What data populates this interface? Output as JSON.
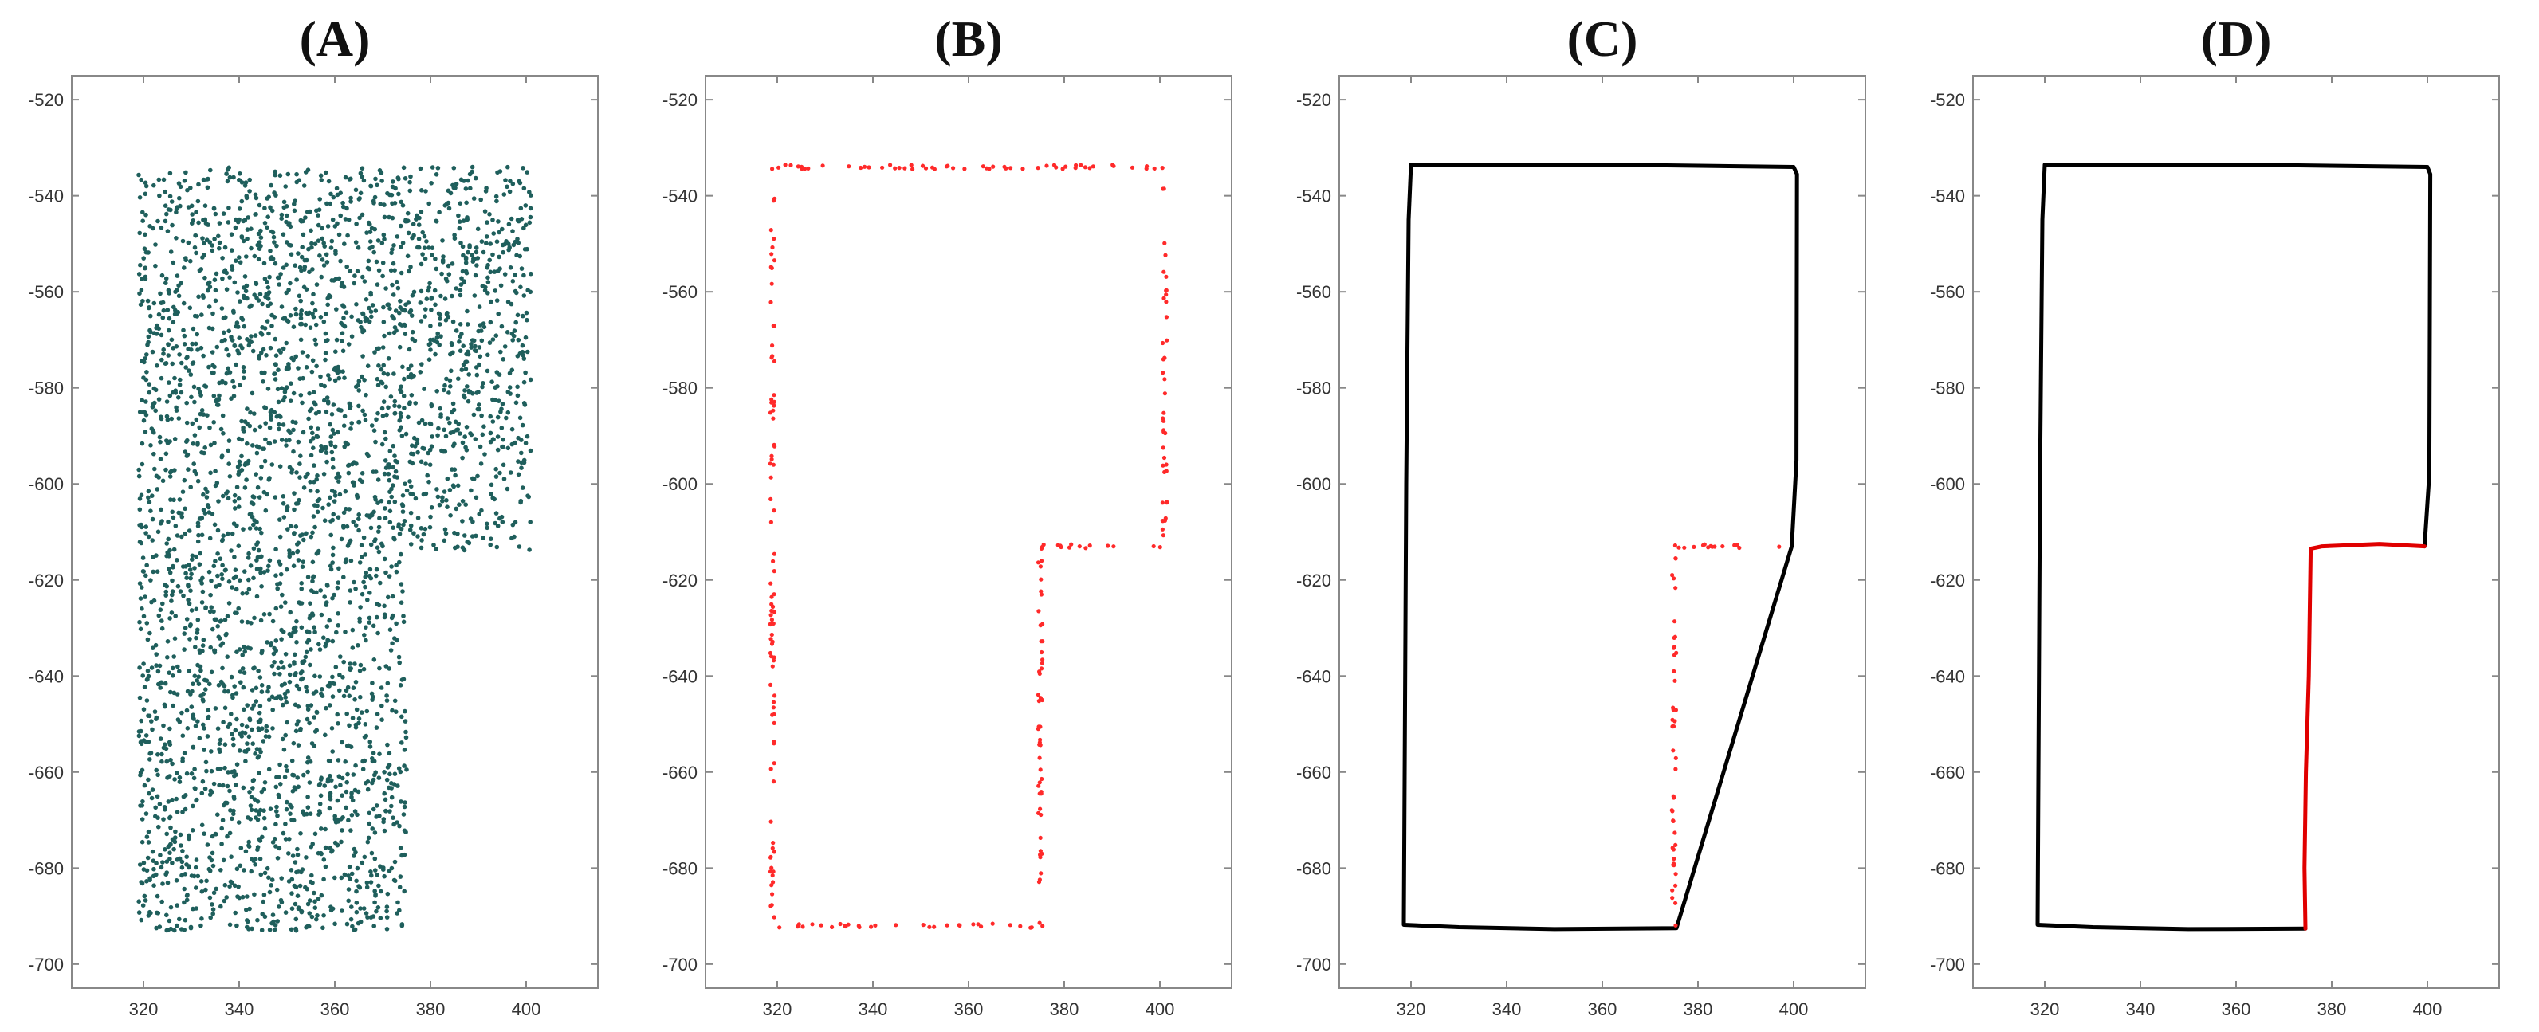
{
  "chart_data": [
    {
      "type": "scatter",
      "title": "(A)",
      "xlim": [
        305,
        415
      ],
      "ylim": [
        -705,
        -515
      ],
      "xticks": [
        320,
        340,
        360,
        380,
        400
      ],
      "yticks": [
        -520,
        -540,
        -560,
        -580,
        -600,
        -620,
        -640,
        -660,
        -680,
        -700
      ],
      "grid": false,
      "series": [
        {
          "kind": "point-cloud",
          "color": "#1f5f5c",
          "region": [
            [
              319,
              -534
            ],
            [
              401,
              -534
            ],
            [
              401,
              -614
            ],
            [
              375,
              -614
            ],
            [
              375,
              -693
            ],
            [
              319,
              -693
            ]
          ]
        }
      ]
    },
    {
      "type": "scatter",
      "title": "(B)",
      "xlim": [
        305,
        415
      ],
      "ylim": [
        -705,
        -515
      ],
      "xticks": [
        320,
        340,
        360,
        380,
        400
      ],
      "yticks": [
        -520,
        -540,
        -560,
        -580,
        -600,
        -620,
        -640,
        -660,
        -680,
        -700
      ],
      "grid": false,
      "series": [
        {
          "kind": "boundary-points",
          "color": "#ff2a2a",
          "path": [
            [
              319,
              -534
            ],
            [
              401,
              -534
            ],
            [
              401,
              -613
            ],
            [
              375,
              -613
            ],
            [
              375,
              -692
            ],
            [
              319,
              -692
            ],
            [
              319,
              -534
            ]
          ]
        }
      ]
    },
    {
      "type": "line",
      "title": "(C)",
      "xlim": [
        305,
        415
      ],
      "ylim": [
        -705,
        -515
      ],
      "xticks": [
        320,
        340,
        360,
        380,
        400
      ],
      "yticks": [
        -520,
        -540,
        -560,
        -580,
        -600,
        -620,
        -640,
        -660,
        -680,
        -700
      ],
      "grid": false,
      "series": [
        {
          "kind": "line",
          "color": "#000000",
          "points": [
            [
              320,
              -533.5
            ],
            [
              360,
              -533.5
            ],
            [
              400,
              -534
            ],
            [
              400.7,
              -535.5
            ],
            [
              400.6,
              -595
            ],
            [
              399.6,
              -613
            ],
            [
              375.5,
              -692.5
            ],
            [
              350,
              -692.7
            ],
            [
              330,
              -692.3
            ],
            [
              318.5,
              -691.8
            ],
            [
              319,
              -600
            ],
            [
              319.5,
              -545
            ],
            [
              320,
              -533.5
            ]
          ]
        },
        {
          "kind": "boundary-points",
          "color": "#ff2a2a",
          "path": [
            [
              398,
              -613
            ],
            [
              375,
              -613
            ],
            [
              375,
              -692
            ]
          ]
        }
      ]
    },
    {
      "type": "line",
      "title": "(D)",
      "xlim": [
        305,
        415
      ],
      "ylim": [
        -705,
        -515
      ],
      "xticks": [
        320,
        340,
        360,
        380,
        400
      ],
      "yticks": [
        -520,
        -540,
        -560,
        -580,
        -600,
        -620,
        -640,
        -660,
        -680,
        -700
      ],
      "grid": false,
      "series": [
        {
          "kind": "line",
          "color": "#000000",
          "points": [
            [
              399.4,
              -613
            ],
            [
              400.4,
              -598
            ],
            [
              400.6,
              -535.5
            ],
            [
              400,
              -534
            ],
            [
              360,
              -533.5
            ],
            [
              320,
              -533.5
            ],
            [
              319.5,
              -545
            ],
            [
              319,
              -600
            ],
            [
              318.5,
              -691.8
            ],
            [
              330,
              -692.3
            ],
            [
              350,
              -692.7
            ],
            [
              374.5,
              -692.6
            ]
          ]
        },
        {
          "kind": "line",
          "color": "#e00000",
          "points": [
            [
              374.5,
              -692.6
            ],
            [
              374.3,
              -680
            ],
            [
              374.6,
              -660
            ],
            [
              375.2,
              -640
            ],
            [
              375.6,
              -613.5
            ],
            [
              378,
              -613
            ],
            [
              390,
              -612.5
            ],
            [
              399.4,
              -613
            ]
          ]
        }
      ]
    }
  ]
}
